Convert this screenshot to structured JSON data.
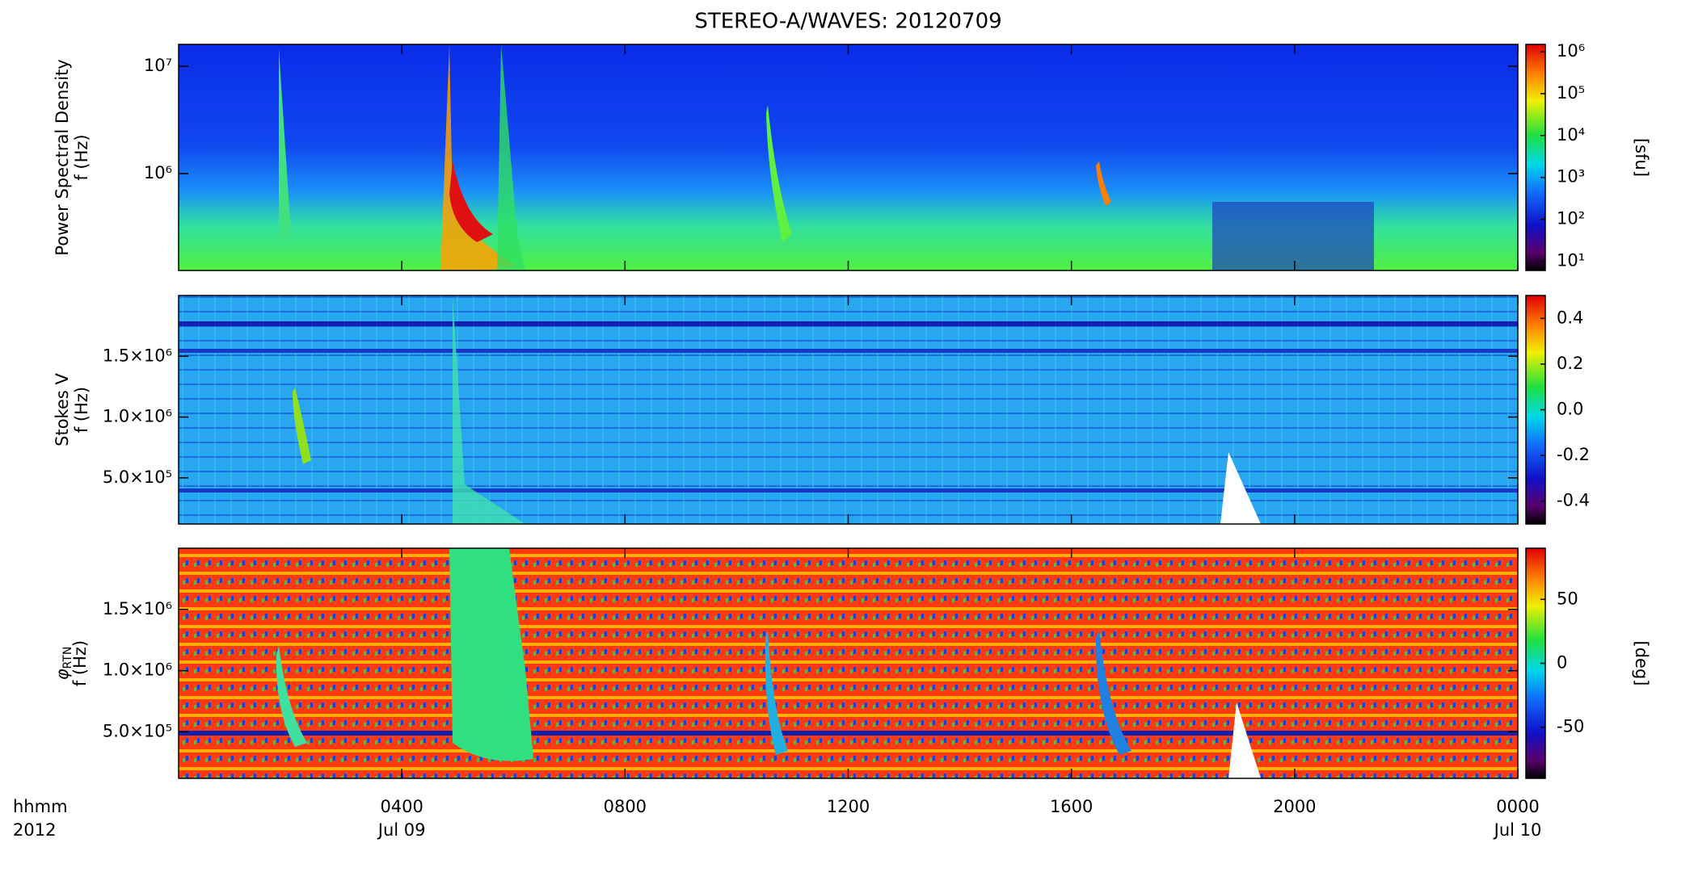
{
  "title": "STEREO-A/WAVES: 20120709",
  "x_axis": {
    "label_lines": [
      "hhmm",
      "2012"
    ],
    "xlim": [
      0,
      24
    ],
    "xticks": [
      {
        "value": 4,
        "label": "0400"
      },
      {
        "value": 8,
        "label": "0800"
      },
      {
        "value": 12,
        "label": "1200"
      },
      {
        "value": 16,
        "label": "1600"
      },
      {
        "value": 20,
        "label": "2000"
      },
      {
        "value": 24,
        "label": "0000"
      }
    ],
    "date_labels": [
      {
        "value": 4,
        "label": "Jul 09"
      },
      {
        "value": 24,
        "label": "Jul 10"
      }
    ]
  },
  "chart_data": [
    {
      "type": "spectrogram",
      "ylabel_lines": [
        "Power Spectral Density",
        "f (Hz)"
      ],
      "ylog": true,
      "ylim": [
        125000,
        16000000
      ],
      "yticks": [
        {
          "value": 1000000,
          "label": "10⁶"
        },
        {
          "value": 10000000,
          "label": "10⁷"
        }
      ],
      "colorbar": {
        "log": true,
        "lim": [
          6,
          1500000
        ],
        "label": "[sfu]",
        "ticks": [
          {
            "value": 10,
            "label": "10¹"
          },
          {
            "value": 100,
            "label": "10²"
          },
          {
            "value": 1000,
            "label": "10³"
          },
          {
            "value": 10000,
            "label": "10⁴"
          },
          {
            "value": 100000,
            "label": "10⁵"
          },
          {
            "value": 1000000,
            "label": "10⁶"
          }
        ]
      }
    },
    {
      "type": "spectrogram",
      "ylabel_lines": [
        "Stokes V",
        "f (Hz)"
      ],
      "ylog": false,
      "ylim": [
        120000,
        2000000
      ],
      "yticks": [
        {
          "value": 500000,
          "label": "5.0×10⁵"
        },
        {
          "value": 1000000,
          "label": "1.0×10⁶"
        },
        {
          "value": 1500000,
          "label": "1.5×10⁶"
        }
      ],
      "colorbar": {
        "log": false,
        "lim": [
          -0.5,
          0.5
        ],
        "ticks": [
          -0.4,
          -0.2,
          {
            "value": 0,
            "label": "0.0"
          },
          0.2,
          0.4
        ]
      }
    },
    {
      "type": "spectrogram",
      "ylabel_lines": [
        "φ",
        "RTN",
        "f (Hz)"
      ],
      "ylog": false,
      "ylim": [
        120000,
        2000000
      ],
      "yticks": [
        {
          "value": 500000,
          "label": "5.0×10⁵"
        },
        {
          "value": 1000000,
          "label": "1.0×10⁶"
        },
        {
          "value": 1500000,
          "label": "1.5×10⁶"
        }
      ],
      "colorbar": {
        "log": false,
        "lim": [
          -90,
          90
        ],
        "label": "[deg]",
        "ticks": [
          -50,
          0,
          50
        ]
      }
    }
  ]
}
